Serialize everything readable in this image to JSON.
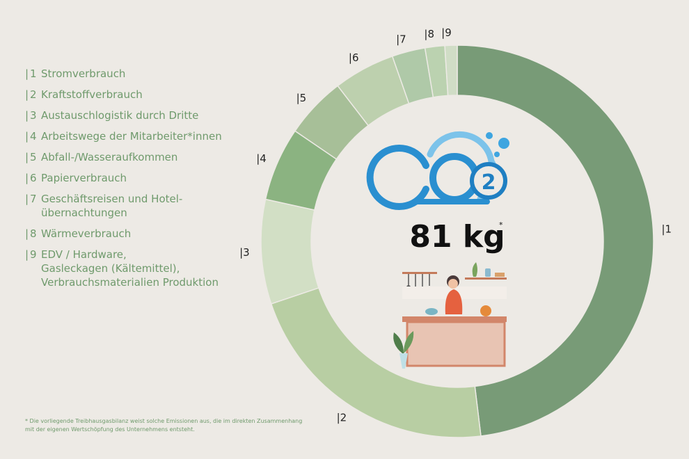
{
  "chart_data": {
    "type": "pie",
    "categories": [
      "1",
      "2",
      "3",
      "4",
      "5",
      "6",
      "7",
      "8",
      "9"
    ],
    "values": [
      47.5,
      21.5,
      8.5,
      6.0,
      5.0,
      5.0,
      2.7,
      1.6,
      1.0
    ],
    "colors": [
      "#789b77",
      "#b8cea3",
      "#d2dfc5",
      "#8bb381",
      "#a7bf98",
      "#bdd0ae",
      "#afc9a8",
      "#bbd2b0",
      "#d0ddc6"
    ],
    "legend_entries": [
      {
        "num": "1",
        "label": "Stromverbrauch"
      },
      {
        "num": "2",
        "label": "Kraftstoffverbrauch"
      },
      {
        "num": "3",
        "label": "Austauschlogistik durch Dritte"
      },
      {
        "num": "4",
        "label": "Arbeitswege der Mitarbeiter*innen"
      },
      {
        "num": "5",
        "label": "Abfall-/Wasseraufkommen"
      },
      {
        "num": "6",
        "label": "Papierverbrauch"
      },
      {
        "num": "7",
        "label": "Geschäftsreisen und Hotel-\nübernachtungen"
      },
      {
        "num": "8",
        "label": "Wärmeverbrauch"
      },
      {
        "num": "9",
        "label": "EDV / Hardware,\nGasleckagen (Kältemittel),\nVerbrauchsmaterialien Produktion"
      }
    ],
    "legend_placement": "left",
    "center_value": "81 kg",
    "center_value_marker": "*",
    "center_logo_text": "CO",
    "center_logo_subscript": "2"
  },
  "footnote": "* Die vorliegende Treibhausgasbilanz weist solche Emissionen aus, die im direkten Zusammenhang mit der eigenen Wertschöpfung des Unternehmens entsteht.",
  "colors": {
    "accent_text": "#6f9a6c",
    "co2_blue": "#2a8fd0",
    "background": "#edeae5"
  },
  "icons": [
    "co2-cloud-icon",
    "kitchen-cooking-illustration"
  ]
}
